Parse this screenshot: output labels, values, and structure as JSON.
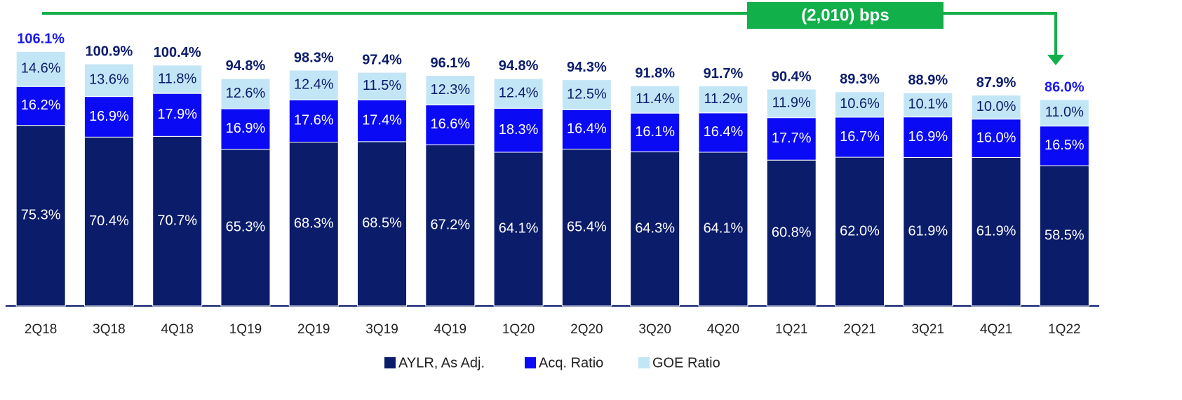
{
  "chart_data": {
    "type": "stacked_bar",
    "annotation": "(2,010) bps",
    "categories": [
      "2Q18",
      "3Q18",
      "4Q18",
      "1Q19",
      "2Q19",
      "3Q19",
      "4Q19",
      "1Q20",
      "2Q20",
      "3Q20",
      "4Q20",
      "1Q21",
      "2Q21",
      "3Q21",
      "4Q21",
      "1Q22"
    ],
    "series": [
      {
        "name": "AYLR, As Adj.",
        "color": "#0b1c6b",
        "label_color": "#ffffff",
        "values": [
          75.3,
          70.4,
          70.7,
          65.3,
          68.3,
          68.5,
          67.2,
          64.1,
          65.4,
          64.3,
          64.1,
          60.8,
          62.0,
          61.9,
          61.9,
          58.5
        ],
        "value_labels": [
          "75.3%",
          "70.4%",
          "70.7%",
          "65.3%",
          "68.3%",
          "68.5%",
          "67.2%",
          "64.1%",
          "65.4%",
          "64.3%",
          "64.1%",
          "60.8%",
          "62.0%",
          "61.9%",
          "61.9%",
          "58.5%"
        ]
      },
      {
        "name": "Acq. Ratio",
        "color": "#0a0af5",
        "label_color": "#ffffff",
        "values": [
          16.2,
          16.9,
          17.9,
          16.9,
          17.6,
          17.4,
          16.6,
          18.3,
          16.4,
          16.1,
          16.4,
          17.7,
          16.7,
          16.9,
          16.0,
          16.5
        ],
        "value_labels": [
          "16.2%",
          "16.9%",
          "17.9%",
          "16.9%",
          "17.6%",
          "17.4%",
          "16.6%",
          "18.3%",
          "16.4%",
          "16.1%",
          "16.4%",
          "17.7%",
          "16.7%",
          "16.9%",
          "16.0%",
          "16.5%"
        ]
      },
      {
        "name": "GOE Ratio",
        "color": "#c3e6f6",
        "label_color": "#0b1c6b",
        "values": [
          14.6,
          13.6,
          11.8,
          12.6,
          12.4,
          11.5,
          12.3,
          12.4,
          12.5,
          11.4,
          11.2,
          11.9,
          10.6,
          10.1,
          10.0,
          11.0
        ],
        "value_labels": [
          "14.6%",
          "13.6%",
          "11.8%",
          "12.6%",
          "12.4%",
          "11.5%",
          "12.3%",
          "12.4%",
          "12.5%",
          "11.4%",
          "11.2%",
          "11.9%",
          "10.6%",
          "10.1%",
          "10.0%",
          "11.0%"
        ]
      }
    ],
    "totals": {
      "values": [
        106.1,
        100.9,
        100.4,
        94.8,
        98.3,
        97.4,
        96.1,
        94.8,
        94.3,
        91.8,
        91.7,
        90.4,
        89.3,
        88.9,
        87.9,
        86.0
      ],
      "value_labels": [
        "106.1%",
        "100.9%",
        "100.4%",
        "94.8%",
        "98.3%",
        "97.4%",
        "96.1%",
        "94.8%",
        "94.3%",
        "91.8%",
        "91.7%",
        "90.4%",
        "89.3%",
        "88.9%",
        "87.9%",
        "86.0%"
      ],
      "colors": [
        "#1a1aee",
        "#0b1c6b",
        "#0b1c6b",
        "#0b1c6b",
        "#0b1c6b",
        "#0b1c6b",
        "#0b1c6b",
        "#0b1c6b",
        "#0b1c6b",
        "#0b1c6b",
        "#0b1c6b",
        "#0b1c6b",
        "#0b1c6b",
        "#0b1c6b",
        "#0b1c6b",
        "#1a1aee"
      ]
    },
    "ylim": [
      0,
      110
    ]
  }
}
